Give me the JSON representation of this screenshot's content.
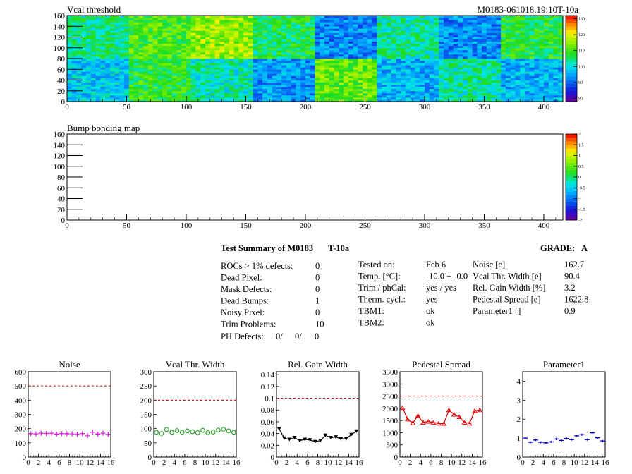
{
  "top_map": {
    "title": "Vcal threshold",
    "run_label": "M0183-061018.19:10T-10a",
    "x_ticks": [
      "0",
      "50",
      "100",
      "150",
      "200",
      "250",
      "300",
      "350",
      "400"
    ],
    "y_ticks": [
      "0",
      "20",
      "40",
      "60",
      "80",
      "100",
      "120",
      "140",
      "160"
    ],
    "colorbar_ticks": [
      "130",
      "120",
      "110",
      "100",
      "90",
      "80"
    ],
    "colorbar_range": [
      78,
      132
    ]
  },
  "bump_map": {
    "title": "Bump bonding map",
    "x_ticks": [
      "0",
      "50",
      "100",
      "150",
      "200",
      "250",
      "300",
      "350",
      "400"
    ],
    "y_ticks": [
      "0",
      "20",
      "40",
      "60",
      "80",
      "100",
      "120",
      "140",
      "160"
    ],
    "colorbar_ticks": [
      "2",
      "1.5",
      "1",
      "0.5",
      "0",
      "-0.5",
      "-1",
      "-1.5",
      "-2"
    ]
  },
  "summary": {
    "title": "Test Summary of M0183",
    "temp_tag": "T-10a",
    "grade_label": "GRADE:",
    "grade_value": "A",
    "defects": [
      {
        "label": "ROCs > 1% defects:",
        "value": "0"
      },
      {
        "label": "Dead Pixel:",
        "value": "0"
      },
      {
        "label": "Mask Defects:",
        "value": "0"
      },
      {
        "label": "Dead Bumps:",
        "value": "1"
      },
      {
        "label": "Noisy Pixel:",
        "value": "0"
      },
      {
        "label": "Trim Problems:",
        "value": "10"
      }
    ],
    "ph_label": "PH Defects:",
    "ph_values": [
      "0/",
      "0/",
      "0"
    ],
    "conditions": [
      {
        "label": "Tested on:",
        "value": "Feb 6"
      },
      {
        "label": "Temp. [°C]:",
        "value": "-10.0 +- 0.0"
      },
      {
        "label": "Trim / phCal:",
        "value": "yes / yes"
      },
      {
        "label": "Therm. cycl.:",
        "value": "yes"
      },
      {
        "label": "TBM1:",
        "value": "ok"
      },
      {
        "label": "TBM2:",
        "value": "ok"
      }
    ],
    "results": [
      {
        "label": "Noise [e]",
        "value": "162.7"
      },
      {
        "label": "Vcal Thr. Width [e]",
        "value": "90.4"
      },
      {
        "label": "Rel. Gain Width [%]",
        "value": "3.2"
      },
      {
        "label": "Pedestal Spread [e]",
        "value": "1622.8"
      },
      {
        "label": "Parameter1 []",
        "value": "0.9"
      }
    ]
  },
  "colors": {
    "noise": "#e020e0",
    "vcal": "#20a020",
    "gain": "#000000",
    "pedestal": "#e00000",
    "param": "#0000cc",
    "limit": "#cc0000",
    "ph_red": "#ff0000",
    "ph_blue": "#0000ff"
  },
  "chart_data": [
    {
      "type": "heatmap",
      "title": "Vcal threshold",
      "xlim": [
        0,
        416
      ],
      "ylim": [
        0,
        160
      ],
      "z_range": [
        78,
        132
      ],
      "roc_mean_threshold": [
        [
          98,
          108,
          102,
          94,
          112,
          96,
          103,
          96
        ],
        [
          104,
          110,
          115,
          106,
          93,
          103,
          93,
          107
        ]
      ]
    },
    {
      "type": "heatmap",
      "title": "Bump bonding map",
      "xlim": [
        0,
        416
      ],
      "ylim": [
        0,
        160
      ],
      "z_range": [
        -2,
        2
      ]
    },
    {
      "type": "scatter",
      "title": "Noise",
      "xlim": [
        0,
        16
      ],
      "ylim": [
        0,
        600
      ],
      "x_ticks": [
        "0",
        "2",
        "4",
        "6",
        "8",
        "10",
        "12",
        "14",
        "16"
      ],
      "y_ticks": [
        "0",
        "100",
        "200",
        "300",
        "400",
        "500",
        "600"
      ],
      "limit_line": 500,
      "x": [
        0.5,
        1.5,
        2.5,
        3.5,
        4.5,
        5.5,
        6.5,
        7.5,
        8.5,
        9.5,
        10.5,
        11.5,
        12.5,
        13.5,
        14.5,
        15.5
      ],
      "values": [
        165,
        163,
        168,
        166,
        168,
        162,
        165,
        164,
        163,
        160,
        165,
        150,
        175,
        162,
        168,
        160
      ]
    },
    {
      "type": "scatter",
      "title": "Vcal Thr. Width",
      "xlim": [
        0,
        16
      ],
      "ylim": [
        0,
        300
      ],
      "x_ticks": [
        "0",
        "2",
        "4",
        "6",
        "8",
        "10",
        "12",
        "14",
        "16"
      ],
      "y_ticks": [
        "0",
        "50",
        "100",
        "150",
        "200",
        "250",
        "300"
      ],
      "limit_line": 200,
      "x": [
        0.5,
        1.5,
        2.5,
        3.5,
        4.5,
        5.5,
        6.5,
        7.5,
        8.5,
        9.5,
        10.5,
        11.5,
        12.5,
        13.5,
        14.5,
        15.5
      ],
      "values": [
        87,
        83,
        97,
        87,
        93,
        87,
        92,
        89,
        86,
        94,
        86,
        88,
        95,
        98,
        92,
        87
      ]
    },
    {
      "type": "line",
      "title": "Rel. Gain Width",
      "xlim": [
        0,
        16
      ],
      "ylim": [
        0,
        0.145
      ],
      "x_ticks": [
        "0",
        "2",
        "4",
        "6",
        "8",
        "10",
        "12",
        "14",
        "16"
      ],
      "y_ticks": [
        "0",
        "0.02",
        "0.04",
        "0.06",
        "0.08",
        "0.1",
        "0.12",
        "0.14"
      ],
      "limit_line": 0.1,
      "x": [
        0.5,
        1.5,
        2.5,
        3.5,
        4.5,
        5.5,
        6.5,
        7.5,
        8.5,
        9.5,
        10.5,
        11.5,
        12.5,
        13.5,
        14.5,
        15.5
      ],
      "values": [
        0.048,
        0.032,
        0.03,
        0.033,
        0.028,
        0.03,
        0.029,
        0.026,
        0.028,
        0.037,
        0.033,
        0.034,
        0.031,
        0.031,
        0.038,
        0.044
      ]
    },
    {
      "type": "line",
      "title": "Pedestal Spread",
      "xlim": [
        0,
        16
      ],
      "ylim": [
        0,
        3500
      ],
      "x_ticks": [
        "0",
        "2",
        "4",
        "6",
        "8",
        "10",
        "12",
        "14",
        "16"
      ],
      "y_ticks": [
        "0",
        "500",
        "1000",
        "1500",
        "2000",
        "2500",
        "3000",
        "3500"
      ],
      "limit_line": 2500,
      "x": [
        0.5,
        1.5,
        2.5,
        3.5,
        4.5,
        5.5,
        6.5,
        7.5,
        8.5,
        9.5,
        10.5,
        11.5,
        12.5,
        13.5,
        14.5,
        15.5
      ],
      "values": [
        2020,
        1550,
        1400,
        1700,
        1420,
        1460,
        1420,
        1380,
        1370,
        1930,
        1750,
        1650,
        1420,
        1380,
        1900,
        1930
      ]
    },
    {
      "type": "scatter",
      "title": "Parameter1",
      "xlim": [
        0,
        16
      ],
      "ylim": [
        0,
        4.5
      ],
      "x_ticks": [
        "0",
        "2",
        "4",
        "6",
        "8",
        "10",
        "12",
        "14",
        "16"
      ],
      "y_ticks": [
        "0",
        "1",
        "2",
        "3",
        "4"
      ],
      "x": [
        0.5,
        1.5,
        2.5,
        3.5,
        4.5,
        5.5,
        6.5,
        7.5,
        8.5,
        9.5,
        10.5,
        11.5,
        12.5,
        13.5,
        14.5,
        15.5
      ],
      "values": [
        1.0,
        0.78,
        0.9,
        0.78,
        0.75,
        0.8,
        0.95,
        0.88,
        0.98,
        0.92,
        1.12,
        1.18,
        0.92,
        1.28,
        1.02,
        0.85
      ]
    }
  ]
}
